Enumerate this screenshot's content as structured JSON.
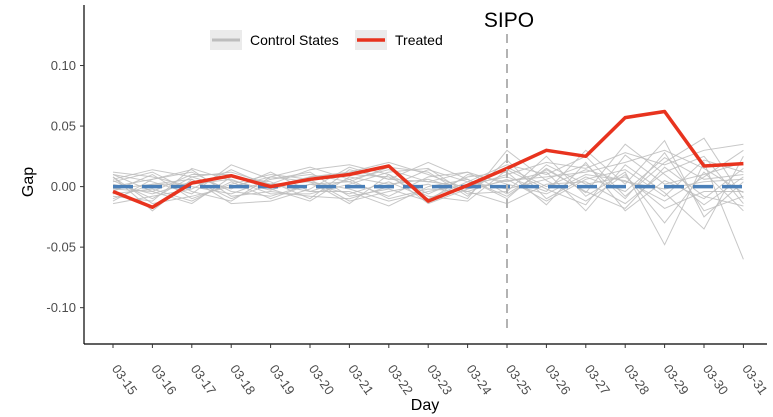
{
  "chart_data": {
    "type": "line",
    "title": "",
    "xlabel": "Day",
    "ylabel": "Gap",
    "x": [
      "03-15",
      "03-16",
      "03-17",
      "03-18",
      "03-19",
      "03-20",
      "03-21",
      "03-22",
      "03-23",
      "03-24",
      "03-25",
      "03-26",
      "03-27",
      "03-28",
      "03-29",
      "03-30",
      "03-31"
    ],
    "ylim": [
      -0.13,
      0.15
    ],
    "yticks": [
      0.1,
      0.05,
      0.0,
      -0.05,
      -0.1
    ],
    "ytick_labels": [
      "0.10",
      "0.05",
      "0.00",
      "-0.05",
      "-0.10"
    ],
    "grid": false,
    "legend_position": "top-left inside",
    "annotation": {
      "text": "SIPO",
      "x": "03-25",
      "style": "dashed vertical line"
    },
    "series": [
      {
        "name": "Treated",
        "color": "#e8331e",
        "values": [
          -0.004,
          -0.017,
          0.003,
          0.009,
          0.0,
          0.006,
          0.01,
          0.017,
          -0.012,
          0.001,
          0.015,
          0.03,
          0.025,
          0.057,
          0.062,
          0.017,
          0.019
        ]
      },
      {
        "name": "Control States",
        "color": "#bdbdbd",
        "group": true,
        "lines": [
          [
            0.005,
            -0.01,
            0.008,
            0.012,
            0.002,
            -0.004,
            0.006,
            0.014,
            0.004,
            0.0,
            0.01,
            0.02,
            0.015,
            0.028,
            0.018,
            0.03,
            0.035
          ],
          [
            -0.008,
            -0.012,
            0.015,
            0.005,
            -0.003,
            0.008,
            0.012,
            0.02,
            0.01,
            -0.002,
            0.005,
            0.008,
            0.012,
            0.02,
            0.03,
            0.015,
            -0.005
          ],
          [
            0.01,
            0.004,
            -0.006,
            0.018,
            0.006,
            0.01,
            0.004,
            -0.008,
            0.008,
            0.012,
            0.002,
            -0.006,
            0.01,
            0.005,
            -0.012,
            0.008,
            0.03
          ],
          [
            -0.012,
            0.006,
            0.012,
            -0.004,
            -0.008,
            0.002,
            -0.006,
            0.004,
            -0.01,
            0.004,
            0.018,
            0.01,
            0.025,
            -0.008,
            0.02,
            0.04,
            -0.01
          ],
          [
            0.002,
            -0.006,
            0.004,
            0.008,
            0.004,
            -0.01,
            0.014,
            0.006,
            0.02,
            0.006,
            -0.008,
            0.015,
            -0.005,
            0.035,
            0.01,
            -0.015,
            0.008
          ],
          [
            -0.004,
            0.01,
            -0.01,
            0.002,
            0.01,
            0.006,
            -0.012,
            -0.004,
            0.002,
            -0.01,
            0.03,
            0.005,
            -0.012,
            0.01,
            -0.03,
            0.012,
            -0.02
          ],
          [
            0.008,
            -0.02,
            0.006,
            -0.01,
            0.002,
            0.014,
            0.018,
            0.01,
            -0.006,
            0.008,
            0.012,
            -0.015,
            0.02,
            -0.02,
            0.005,
            -0.01,
            0.015
          ],
          [
            -0.01,
            0.002,
            0.002,
            0.006,
            -0.006,
            -0.006,
            0.002,
            0.012,
            0.015,
            -0.006,
            -0.004,
            0.025,
            -0.008,
            0.012,
            -0.048,
            0.02,
            -0.06
          ],
          [
            0.004,
            0.012,
            -0.004,
            -0.012,
            0.008,
            0.004,
            -0.002,
            -0.012,
            -0.004,
            0.002,
            0.008,
            -0.004,
            0.03,
            0.002,
            0.038,
            -0.025,
            0.004
          ],
          [
            -0.002,
            -0.004,
            0.01,
            0.01,
            -0.002,
            -0.012,
            0.008,
            0.002,
            0.006,
            -0.004,
            -0.014,
            0.002,
            0.004,
            -0.014,
            0.012,
            0.025,
            -0.014
          ],
          [
            0.012,
            0.008,
            0.0,
            -0.006,
            0.006,
            0.012,
            -0.008,
            -0.002,
            -0.012,
            0.01,
            0.004,
            0.012,
            -0.02,
            0.018,
            -0.005,
            -0.035,
            0.025
          ],
          [
            -0.006,
            -0.002,
            -0.012,
            0.004,
            -0.01,
            0.002,
            0.004,
            0.016,
            0.012,
            -0.008,
            0.022,
            -0.01,
            0.008,
            -0.004,
            0.024,
            0.006,
            0.01
          ],
          [
            0.006,
            0.014,
            0.008,
            -0.002,
            0.012,
            -0.004,
            -0.004,
            -0.016,
            0.0,
            0.006,
            -0.01,
            0.018,
            0.002,
            0.008,
            -0.018,
            -0.004,
            -0.004
          ],
          [
            -0.014,
            -0.008,
            -0.002,
            0.014,
            0.0,
            0.008,
            0.01,
            0.008,
            -0.008,
            -0.012,
            0.014,
            -0.002,
            -0.015,
            0.026,
            0.002,
            0.01,
            0.02
          ],
          [
            0.0,
            0.006,
            0.014,
            -0.008,
            -0.004,
            -0.008,
            -0.01,
            0.0,
            0.014,
            0.004,
            -0.002,
            0.006,
            0.018,
            -0.01,
            0.028,
            -0.02,
            -0.008
          ],
          [
            0.008,
            -0.014,
            -0.008,
            0.0,
            0.008,
            0.016,
            0.006,
            -0.01,
            -0.002,
            -0.004,
            0.006,
            -0.012,
            0.006,
            0.014,
            -0.008,
            0.022,
            0.012
          ],
          [
            -0.002,
            0.002,
            0.006,
            -0.014,
            -0.012,
            -0.002,
            0.016,
            0.006,
            0.004,
            0.012,
            -0.006,
            0.014,
            -0.004,
            -0.018,
            0.016,
            -0.008,
            -0.016
          ],
          [
            0.01,
            -0.004,
            -0.014,
            0.008,
            0.002,
            0.004,
            -0.014,
            0.01,
            -0.014,
            -0.002,
            0.016,
            0.0,
            0.014,
            0.004,
            -0.002,
            0.004,
            0.006
          ]
        ]
      },
      {
        "name": "",
        "color": "#4a7fb8",
        "style": "dashed",
        "values": [
          0,
          0,
          0,
          0,
          0,
          0,
          0,
          0,
          0,
          0,
          0,
          0,
          0,
          0,
          0,
          0,
          0
        ]
      }
    ],
    "legend": [
      {
        "label": "Control States",
        "color": "#bdbdbd"
      },
      {
        "label": "Treated",
        "color": "#e8331e"
      }
    ]
  }
}
